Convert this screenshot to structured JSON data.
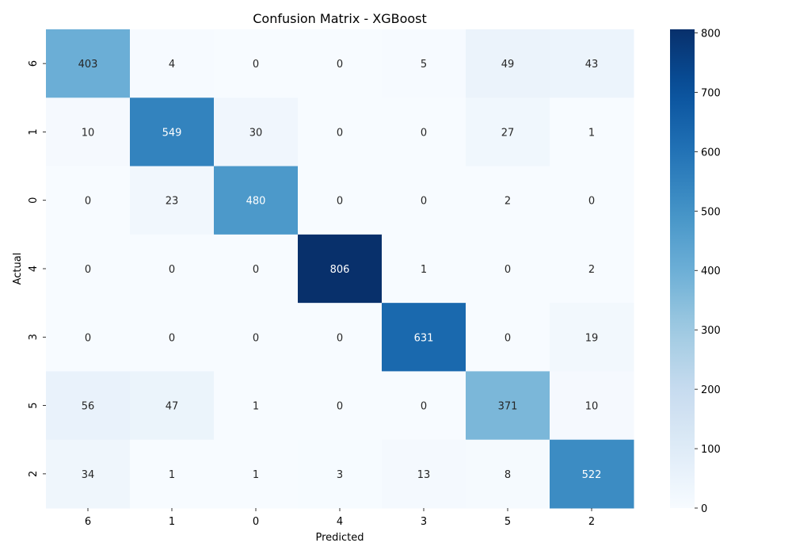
{
  "chart_data": {
    "type": "heatmap",
    "title": "Confusion Matrix - XGBoost",
    "xlabel": "Predicted",
    "ylabel": "Actual",
    "x_labels": [
      "6",
      "1",
      "0",
      "4",
      "3",
      "5",
      "2"
    ],
    "y_labels": [
      "6",
      "1",
      "0",
      "4",
      "3",
      "5",
      "2"
    ],
    "matrix": [
      [
        403,
        4,
        0,
        0,
        5,
        49,
        43
      ],
      [
        10,
        549,
        30,
        0,
        0,
        27,
        1
      ],
      [
        0,
        23,
        480,
        0,
        0,
        2,
        0
      ],
      [
        0,
        0,
        0,
        806,
        1,
        0,
        2
      ],
      [
        0,
        0,
        0,
        0,
        631,
        0,
        19
      ],
      [
        56,
        47,
        1,
        0,
        0,
        371,
        10
      ],
      [
        34,
        1,
        1,
        3,
        13,
        8,
        522
      ]
    ],
    "colorbar": {
      "colormap": "Blues",
      "min": 0,
      "max": 806,
      "ticks": [
        0,
        100,
        200,
        300,
        400,
        500,
        600,
        700,
        800
      ]
    }
  }
}
